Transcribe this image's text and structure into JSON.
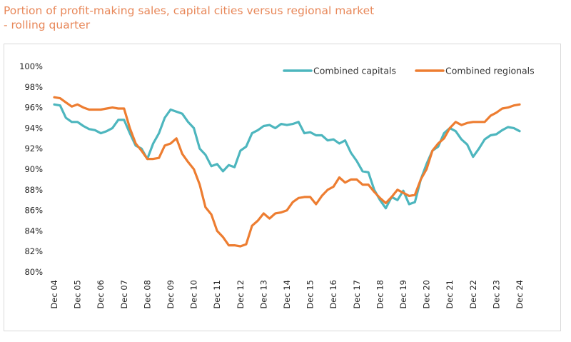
{
  "chart_data": {
    "type": "line",
    "title": "Portion of profit-making sales, capital cities versus regional market - rolling quarter",
    "title_lines": [
      "Portion of profit-making sales, capital cities versus regional market",
      "- rolling quarter"
    ],
    "xlabel": "",
    "ylabel": "",
    "ylim": [
      80,
      100
    ],
    "yticks": [
      "80%",
      "82%",
      "84%",
      "86%",
      "88%",
      "90%",
      "92%",
      "94%",
      "96%",
      "98%",
      "100%"
    ],
    "xticks": [
      "Dec 04",
      "Dec 05",
      "Dec 06",
      "Dec 07",
      "Dec 08",
      "Dec 09",
      "Dec 10",
      "Dec 11",
      "Dec 12",
      "Dec 13",
      "Dec 14",
      "Dec 15",
      "Dec 16",
      "Dec 17",
      "Dec 18",
      "Dec 19",
      "Dec 20",
      "Dec 21",
      "Dec 22",
      "Dec 23",
      "Dec 24"
    ],
    "x_start": "2004-12",
    "x_frequency": "quarterly",
    "grid": false,
    "legend": "top-right",
    "series": [
      {
        "name": "Combined capitals",
        "color": "#4DB6BE",
        "values": [
          96.3,
          96.2,
          95.0,
          94.6,
          94.6,
          94.2,
          93.9,
          93.8,
          93.5,
          93.7,
          94.0,
          94.8,
          94.8,
          93.5,
          92.3,
          92.0,
          91.0,
          92.5,
          93.5,
          95.0,
          95.8,
          95.6,
          95.4,
          94.6,
          94.0,
          92.0,
          91.4,
          90.3,
          90.5,
          89.8,
          90.4,
          90.2,
          91.8,
          92.2,
          93.5,
          93.8,
          94.2,
          94.3,
          94.0,
          94.4,
          94.3,
          94.4,
          94.6,
          93.5,
          93.6,
          93.3,
          93.3,
          92.8,
          92.9,
          92.5,
          92.8,
          91.6,
          90.8,
          89.8,
          89.7,
          88.0,
          87.0,
          86.2,
          87.3,
          87.0,
          87.9,
          86.6,
          86.8,
          89.0,
          90.5,
          91.8,
          92.2,
          93.5,
          94.0,
          93.7,
          92.9,
          92.4,
          91.2,
          92.0,
          92.9,
          93.3,
          93.4,
          93.8,
          94.1,
          94.0,
          93.7
        ]
      },
      {
        "name": "Combined regionals",
        "color": "#ED7D31",
        "values": [
          97.0,
          96.9,
          96.5,
          96.1,
          96.3,
          96.0,
          95.8,
          95.8,
          95.8,
          95.9,
          96.0,
          95.9,
          95.9,
          94.0,
          92.5,
          91.8,
          91.0,
          91.0,
          91.1,
          92.3,
          92.5,
          93.0,
          91.5,
          90.7,
          90.0,
          88.5,
          86.3,
          85.6,
          84.0,
          83.4,
          82.6,
          82.6,
          82.5,
          82.7,
          84.5,
          85.0,
          85.7,
          85.2,
          85.7,
          85.8,
          86.0,
          86.8,
          87.2,
          87.3,
          87.3,
          86.6,
          87.4,
          88.0,
          88.3,
          89.2,
          88.7,
          89.0,
          89.0,
          88.5,
          88.5,
          87.8,
          87.2,
          86.7,
          87.3,
          88.0,
          87.7,
          87.4,
          87.5,
          89.0,
          90.0,
          91.8,
          92.5,
          93.0,
          94.0,
          94.6,
          94.3,
          94.5,
          94.6,
          94.6,
          94.6,
          95.2,
          95.5,
          95.9,
          96.0,
          96.2,
          96.3
        ]
      }
    ]
  }
}
